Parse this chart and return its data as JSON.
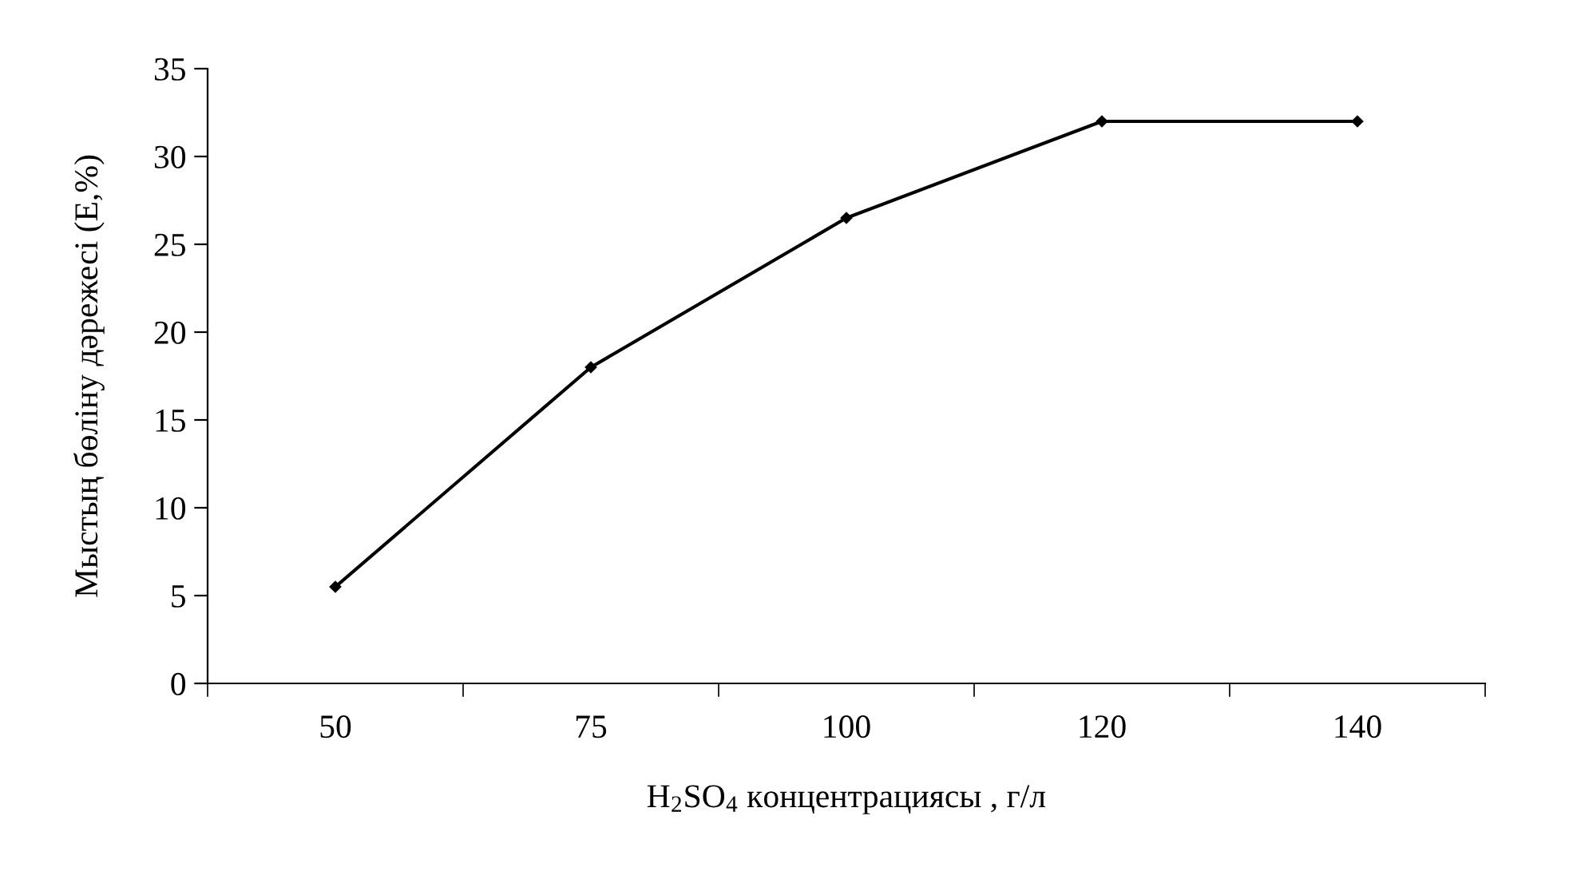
{
  "chart_data": {
    "type": "line",
    "xlabel": "H$_{2}$SO$_{4}$ концентрациясы , г/л",
    "ylabel": "Мыстың бөліну дәрежесі (E,%)",
    "categories": [
      "50",
      "75",
      "100",
      "120",
      "140"
    ],
    "series": [
      {
        "color": "#000000",
        "values": [
          5.5,
          18,
          26.5,
          32,
          32
        ]
      }
    ],
    "ylim": [
      0,
      35
    ],
    "yticks": [
      0,
      5,
      10,
      15,
      20,
      25,
      30,
      35
    ],
    "grid": false,
    "marker": "diamond",
    "line_style": "solid"
  }
}
